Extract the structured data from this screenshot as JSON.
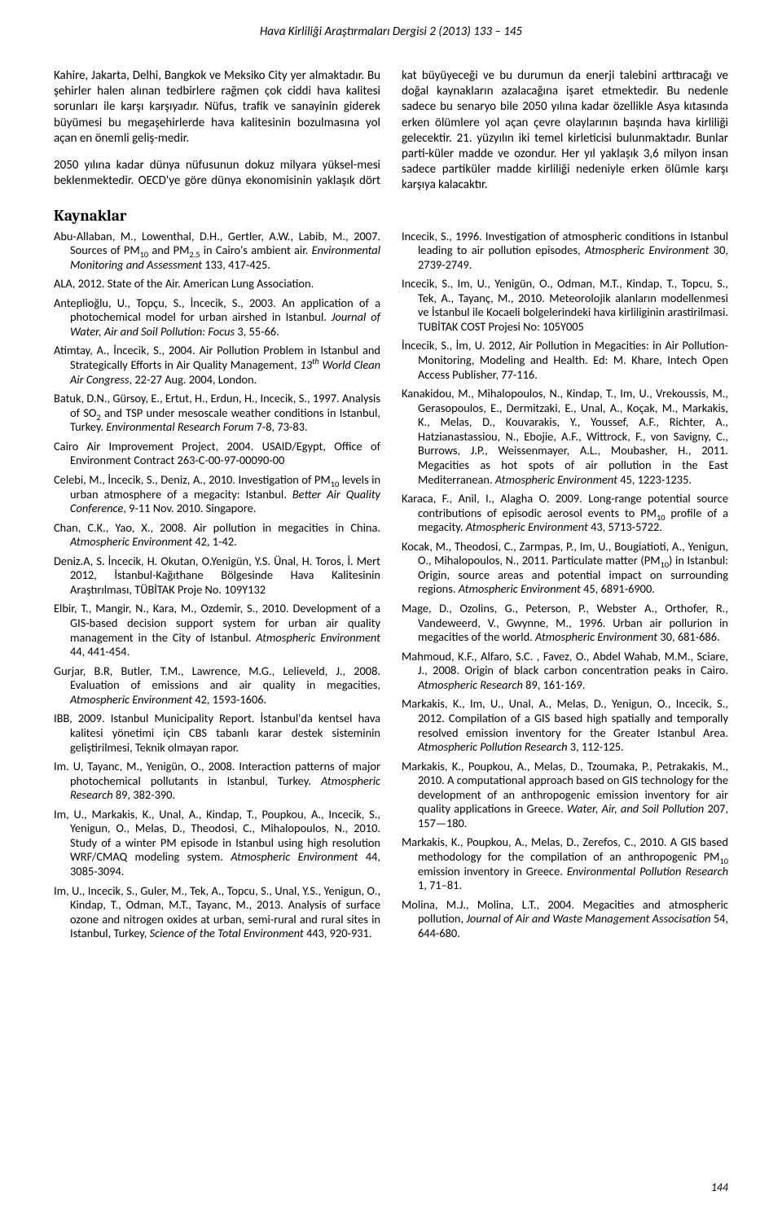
{
  "header": {
    "journal_line": "Hava Kirliliği Araştırmaları Dergisi 2 (2013) 133 – 145"
  },
  "body": {
    "p1": "Kahire, Jakarta, Delhi, Bangkok ve Meksiko City yer almaktadır. Bu şehirler halen alınan tedbirlere rağmen çok ciddi hava kalitesi sorunları ile karşı karşıyadır. Nüfus, trafik ve sanayinin giderek büyümesi bu megaşehirlerde hava kalitesinin bozulmasına yol açan en önemli geliş-medir.",
    "p2": "2050 yılına kadar dünya nüfusunun dokuz milyara yüksel-mesi beklenmektedir. OECD'ye göre dünya ekonomisinin yaklaşık dört kat büyüyeceği ve bu durumun da enerji talebini arttıracağı ve doğal kaynakların azalacağına işaret etmektedir. Bu nedenle sadece bu senaryo bile 2050 yılına kadar özellikle Asya kıtasında erken ölümlere yol açan çevre olaylarının başında hava kirliliği gelecektir. 21. yüzyılın iki temel kirleticisi bulunmaktadır. Bunlar parti-küler madde ve ozondur. Her yıl yaklaşık 3,6 milyon insan sadece partiküler madde kirliliği nedeniyle erken ölümle karşı karşıya kalacaktır."
  },
  "sections": {
    "references_heading": "Kaynaklar"
  },
  "refs": {
    "r01a": "Abu-Allaban, M., Lowenthal, D.H., Gertler, A.W., Labib, M., 2007. Sources of PM",
    "r01b": " and PM",
    "r01c": " in Cairo's ambient air. ",
    "r01d": "Environmental Monitoring and Assessment",
    "r01e": " 133, 417-425.",
    "r02": "ALA, 2012. State of the Air. American Lung Association.",
    "r03a": "Anteplioğlu, U., Topçu, S., İncecik, S., 2003. An application of a photochemical model for urban airshed in Istanbul. ",
    "r03b": "Journal of Water, Air and Soil Pollution: Focus",
    "r03c": " 3, 55-66.",
    "r04a": "Atimtay, A., İncecik, S., 2004. Air Pollution Problem in Istanbul and Strategically Efforts in Air Quality Management, ",
    "r04b": "13",
    "r04c": " World Clean Air Congress",
    "r04d": ", 22-27 Aug. 2004, London.",
    "r05a": "Batuk, D.N., Gürsoy, E., Ertut, H., Erdun, H., Incecik, S., 1997. Analysis of SO",
    "r05b": " and TSP under mesoscale weather conditions in Istanbul, Turkey. ",
    "r05c": "Environmental Research Forum",
    "r05d": " 7-8, 73-83.",
    "r06": "Cairo Air Improvement Project, 2004. USAID/Egypt, Office of Environment Contract 263-C-00-97-00090-00",
    "r07a": "Celebi, M., İncecik, S., Deniz, A., 2010. Investigation of PM",
    "r07b": " levels in urban atmosphere of a megacity: Istanbul. ",
    "r07c": "Better Air Quality Conference",
    "r07d": ", 9-11 Nov. 2010. Singapore.",
    "r08a": "Chan, C.K., Yao, X., 2008. Air pollution in megacities in China. ",
    "r08b": "Atmospheric Environment",
    "r08c": " 42, 1-42.",
    "r09": "Deniz.A, S. İncecik, H. Okutan, O.Yenigün, Y.S. Ünal, H. Toros, İ. Mert 2012, İstanbul-Kağıthane Bölgesinde Hava Kalitesinin Araştırılması, TÜBİTAK Proje No. 109Y132",
    "r10a": "Elbir, T., Mangir, N., Kara, M., Ozdemir, S., 2010. Development of a GIS-based decision support system for urban air quality management in the City of Istanbul. ",
    "r10b": "Atmospheric Environment",
    "r10c": " 44, 441-454.",
    "r11a": "Gurjar, B.R, Butler, T.M., Lawrence, M.G., Lelieveld, J., 2008. Evaluation of emissions and air quality in megacities, ",
    "r11b": "Atmospheric Environment",
    "r11c": " 42, 1593-1606.",
    "r12": "IBB, 2009. Istanbul Municipality Report. İstanbul'da kentsel hava kalitesi yönetimi için CBS tabanlı karar destek sisteminin geliştirilmesi, Teknik olmayan rapor.",
    "r13a": "Im. U, Tayanc, M., Yenigün, O., 2008. Interaction patterns of major photochemical pollutants in Istanbul, Turkey. ",
    "r13b": "Atmospheric Research",
    "r13c": " 89, 382-390.",
    "r14a": "Im, U., Markakis, K., Unal, A., Kindap, T., Poupkou, A., Incecik, S., Yenigun, O., Melas, D., Theodosi, C., Mihalopoulos, N., 2010. Study of a winter PM episode in Istanbul using high resolution WRF/CMAQ modeling system. ",
    "r14b": "Atmospheric Environment",
    "r14c": " 44, 3085-3094.",
    "r15a": "Im, U., Incecik, S., Guler, M., Tek, A., Topcu, S., Unal, Y.S., Yenigun, O., Kindap, T., Odman, M.T., Tayanc, M., 2013. Analysis of surface ozone and nitrogen oxides at urban, semi-rural and rural sites in Istanbul, Turkey, ",
    "r15b": "Science of the Total Environment",
    "r15c": " 443, 920-931.",
    "r16a": "Incecik, S., 1996. Investigation of atmospheric conditions in Istanbul leading to air pollution episodes, ",
    "r16b": "Atmospheric Environment",
    "r16c": " 30, 2739-2749.",
    "r17": "Incecik, S., Im, U., Yenigün, O., Odman, M.T., Kindap, T., Topcu, S., Tek, A., Tayanç, M., 2010. Meteorolojik alanların modellenmesi ve İstanbul ile Kocaeli bolgelerindeki hava kirliliginin arastirilmasi. TUBİTAK COST Projesi No: 105Y005",
    "r18": "İncecik, S., İm, U. 2012, Air Pollution in Megacities: in Air Pollution- Monitoring, Modeling and Health. Ed: M. Khare, Intech Open Access Publisher, 77-116.",
    "r19a": "Kanakidou, M., Mihalopoulos, N., Kindap, T., Im, U., Vrekoussis, M., Gerasopoulos, E., Dermitzaki, E., Unal, A., Koçak, M., Markakis, K., Melas, D., Kouvarakis, Y., Youssef, A.F., Richter, A., Hatzianastassiou, N., Ebojie, A.F., Wittrock, F., von Savigny, C., Burrows, J.P., Weissenmayer, A.L., Moubasher, H., 2011. Megacities as hot spots of air pollution in the East Mediterranean. ",
    "r19b": "Atmospheric Environment",
    "r19c": " 45, 1223-1235.",
    "r20a": "Karaca, F., Anil, I., Alagha O. 2009. Long-range potential source contributions of episodic aerosol events to PM",
    "r20b": " profile of a megacity. ",
    "r20c": "Atmospheric Environment",
    "r20d": " 43, 5713-5722.",
    "r21a": "Kocak, M., Theodosi, C., Zarmpas, P., Im, U., Bougiatioti, A., Yenigun, O., Mihalopoulos, N., 2011. Particulate matter (PM",
    "r21b": ") in Istanbul: Origin, source areas and potential impact on surrounding regions. ",
    "r21c": "Atmospheric Environment",
    "r21d": " 45, 6891-6900.",
    "r22a": "Mage, D., Ozolins, G., Peterson, P., Webster A., Orthofer, R., Vandeweerd, V., Gwynne, M., 1996. Urban air pollurion in megacities of the world. ",
    "r22b": "Atmospheric Environment",
    "r22c": " 30, 681-686.",
    "r23a": "Mahmoud, K.F., Alfaro, S.C. , Favez, O., Abdel Wahab, M.M., Sciare, J., 2008. Origin of black carbon concentration peaks in Cairo. ",
    "r23b": "Atmospheric Research",
    "r23c": " 89, 161-169.",
    "r24a": "Markakis, K., Im, U., Unal, A., Melas, D., Yenigun, O., Incecik, S., 2012. Compilation of a GIS based high spatially and temporally resolved emission inventory for the Greater Istanbul Area. ",
    "r24b": "Atmospheric Pollution Research",
    "r24c": " 3, 112-125.",
    "r25a": "Markakis, K., Poupkou, A., Melas, D., Tzoumaka, P., Petrakakis, M., 2010. A computational approach based on GIS technology for the development of an anthropogenic emission inventory for air quality applications in Greece. ",
    "r25b": "Water, Air, and Soil Pollution",
    "r25c": " 207, 157—180.",
    "r26a": "Markakis, K., Poupkou, A., Melas, D., Zerefos, C., 2010. A GIS based methodology for the compilation of an anthropogenic PM",
    "r26b": " emission inventory in Greece. ",
    "r26c": "Environmental Pollution Research",
    "r26d": " 1, 71–81.",
    "r27a": "Molina, M.J., Molina, L.T., 2004. Megacities and atmospheric pollution, ",
    "r27b": "Journal of Air and Waste Management Associsation",
    "r27c": " 54, 644-680."
  },
  "subs": {
    "ten": "10",
    "twofive": "2.5",
    "two": "2",
    "th": "th"
  },
  "footer": {
    "page_number": "144"
  }
}
